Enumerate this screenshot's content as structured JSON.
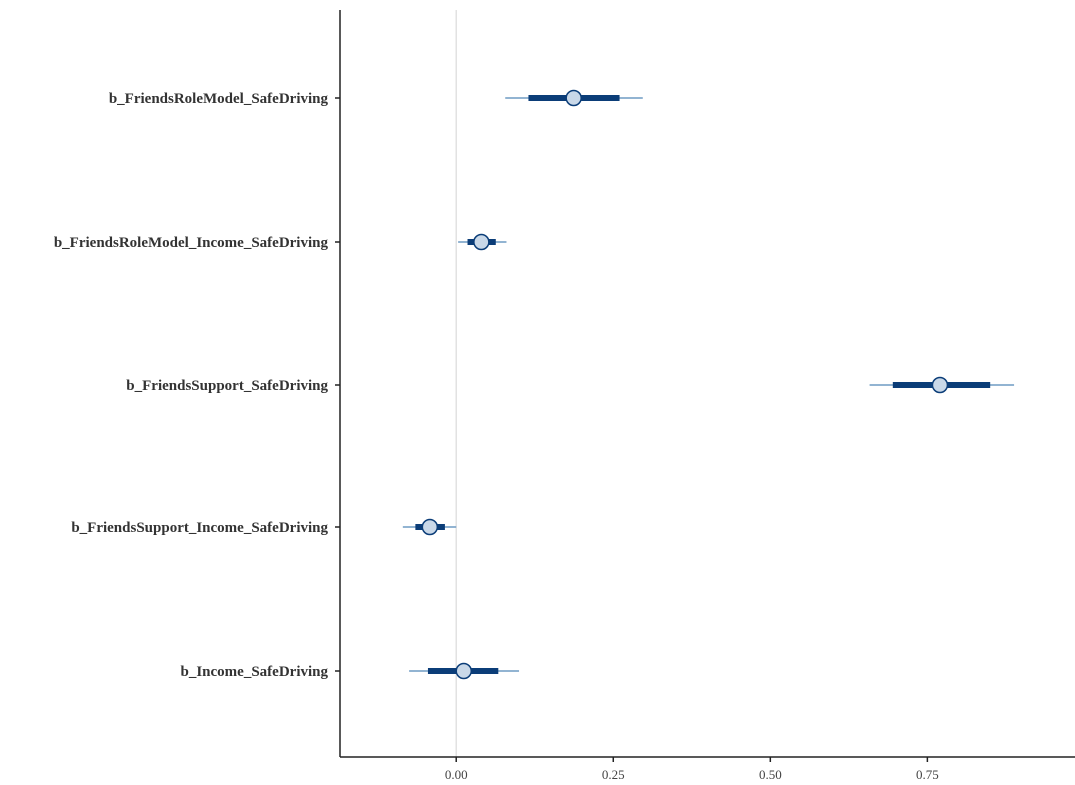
{
  "chart_data": {
    "type": "interval",
    "title": "",
    "xlabel": "",
    "ylabel": "",
    "xlim": [
      -0.185,
      0.985
    ],
    "x_ticks": [
      0.0,
      0.25,
      0.5,
      0.75
    ],
    "x_tick_labels": [
      "0.00",
      "0.25",
      "0.50",
      "0.75"
    ],
    "reference_line_x": 0,
    "grid": false,
    "parameters": [
      {
        "name": "b_FriendsRoleModel_SafeDriving",
        "estimate": 0.187,
        "inner": [
          0.115,
          0.26
        ],
        "outer": [
          0.078,
          0.297
        ]
      },
      {
        "name": "b_FriendsRoleModel_Income_SafeDriving",
        "estimate": 0.04,
        "inner": [
          0.018,
          0.063
        ],
        "outer": [
          0.003,
          0.08
        ]
      },
      {
        "name": "b_FriendsSupport_SafeDriving",
        "estimate": 0.77,
        "inner": [
          0.695,
          0.85
        ],
        "outer": [
          0.658,
          0.888
        ]
      },
      {
        "name": "b_FriendsSupport_Income_SafeDriving",
        "estimate": -0.042,
        "inner": [
          -0.065,
          -0.018
        ],
        "outer": [
          -0.085,
          0.0
        ]
      },
      {
        "name": "b_Income_SafeDriving",
        "estimate": 0.012,
        "inner": [
          -0.045,
          0.067
        ],
        "outer": [
          -0.075,
          0.1
        ]
      }
    ],
    "colors": {
      "inner_interval": "#0b3d78",
      "outer_interval": "#6f9cc4",
      "point_fill": "#c9d8e8",
      "point_stroke": "#0b3d78",
      "reference_line": "#e2e2e2",
      "axis": "#222222"
    }
  }
}
